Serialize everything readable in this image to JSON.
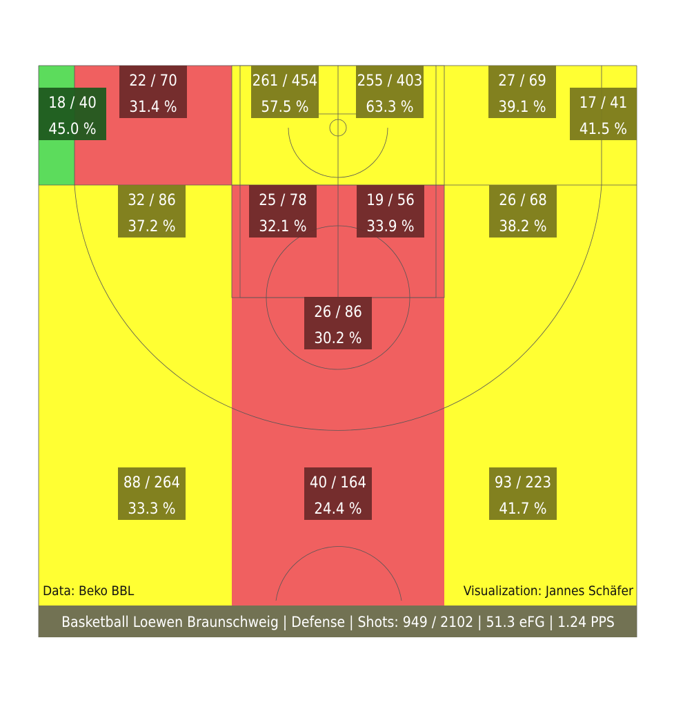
{
  "chart_data": {
    "type": "heatmap",
    "description_kind": "basketball shot chart by court zone",
    "zones": [
      {
        "id": "corner-left-baseline",
        "made": 18,
        "attempts": 40,
        "pct": 45.0,
        "label_made": "18 / 40",
        "label_pct": "45.0 %",
        "rating": "good"
      },
      {
        "id": "corner-left-wing",
        "made": 22,
        "attempts": 70,
        "pct": 31.4,
        "label_made": "22 / 70",
        "label_pct": "31.4 %",
        "rating": "bad"
      },
      {
        "id": "rim-left",
        "made": 261,
        "attempts": 454,
        "pct": 57.5,
        "label_made": "261 / 454",
        "label_pct": "57.5 %",
        "rating": "avg"
      },
      {
        "id": "rim-right",
        "made": 255,
        "attempts": 403,
        "pct": 63.3,
        "label_made": "255 / 403",
        "label_pct": "63.3 %",
        "rating": "avg"
      },
      {
        "id": "corner-right-wing",
        "made": 27,
        "attempts": 69,
        "pct": 39.1,
        "label_made": "27 / 69",
        "label_pct": "39.1 %",
        "rating": "avg"
      },
      {
        "id": "corner-right-baseline",
        "made": 17,
        "attempts": 41,
        "pct": 41.5,
        "label_made": "17 / 41",
        "label_pct": "41.5 %",
        "rating": "avg"
      },
      {
        "id": "midrange-left-wing",
        "made": 32,
        "attempts": 86,
        "pct": 37.2,
        "label_made": "32 / 86",
        "label_pct": "37.2 %",
        "rating": "avg"
      },
      {
        "id": "paint-left",
        "made": 25,
        "attempts": 78,
        "pct": 32.1,
        "label_made": "25 / 78",
        "label_pct": "32.1 %",
        "rating": "bad"
      },
      {
        "id": "paint-right",
        "made": 19,
        "attempts": 56,
        "pct": 33.9,
        "label_made": "19 / 56",
        "label_pct": "33.9 %",
        "rating": "bad"
      },
      {
        "id": "midrange-right-wing",
        "made": 26,
        "attempts": 68,
        "pct": 38.2,
        "label_made": "26 / 68",
        "label_pct": "38.2 %",
        "rating": "avg"
      },
      {
        "id": "free-throw-area",
        "made": 26,
        "attempts": 86,
        "pct": 30.2,
        "label_made": "26 / 86",
        "label_pct": "30.2 %",
        "rating": "bad"
      },
      {
        "id": "three-left",
        "made": 88,
        "attempts": 264,
        "pct": 33.3,
        "label_made": "88 / 264",
        "label_pct": "33.3 %",
        "rating": "avg"
      },
      {
        "id": "three-top",
        "made": 40,
        "attempts": 164,
        "pct": 24.4,
        "label_made": "40 / 164",
        "label_pct": "24.4 %",
        "rating": "bad"
      },
      {
        "id": "three-right",
        "made": 93,
        "attempts": 223,
        "pct": 41.7,
        "label_made": "93 / 223",
        "label_pct": "41.7 %",
        "rating": "avg"
      }
    ],
    "credits": {
      "data_source": "Data: Beko BBL",
      "visualization": "Visualization: Jannes Schäfer"
    },
    "footer": "Basketball Loewen Braunschweig | Defense | Shots: 949 / 2102 | 51.3 eFG | 1.24 PPS",
    "summary": {
      "team": "Basketball Loewen Braunschweig",
      "side": "Defense",
      "shots_made": 949,
      "shots_attempted": 2102,
      "efg": 51.3,
      "pps": 1.24
    }
  },
  "colors": {
    "good": "#5cdc5c",
    "avg": "#ffff33",
    "bad": "#f06060",
    "label_box_good": "#1f5a1f",
    "label_box_avg": "#7b7a1f",
    "label_box_bad": "#6e2a2a",
    "footer_bg": "#6a6a4a",
    "court_line": "#555555"
  }
}
